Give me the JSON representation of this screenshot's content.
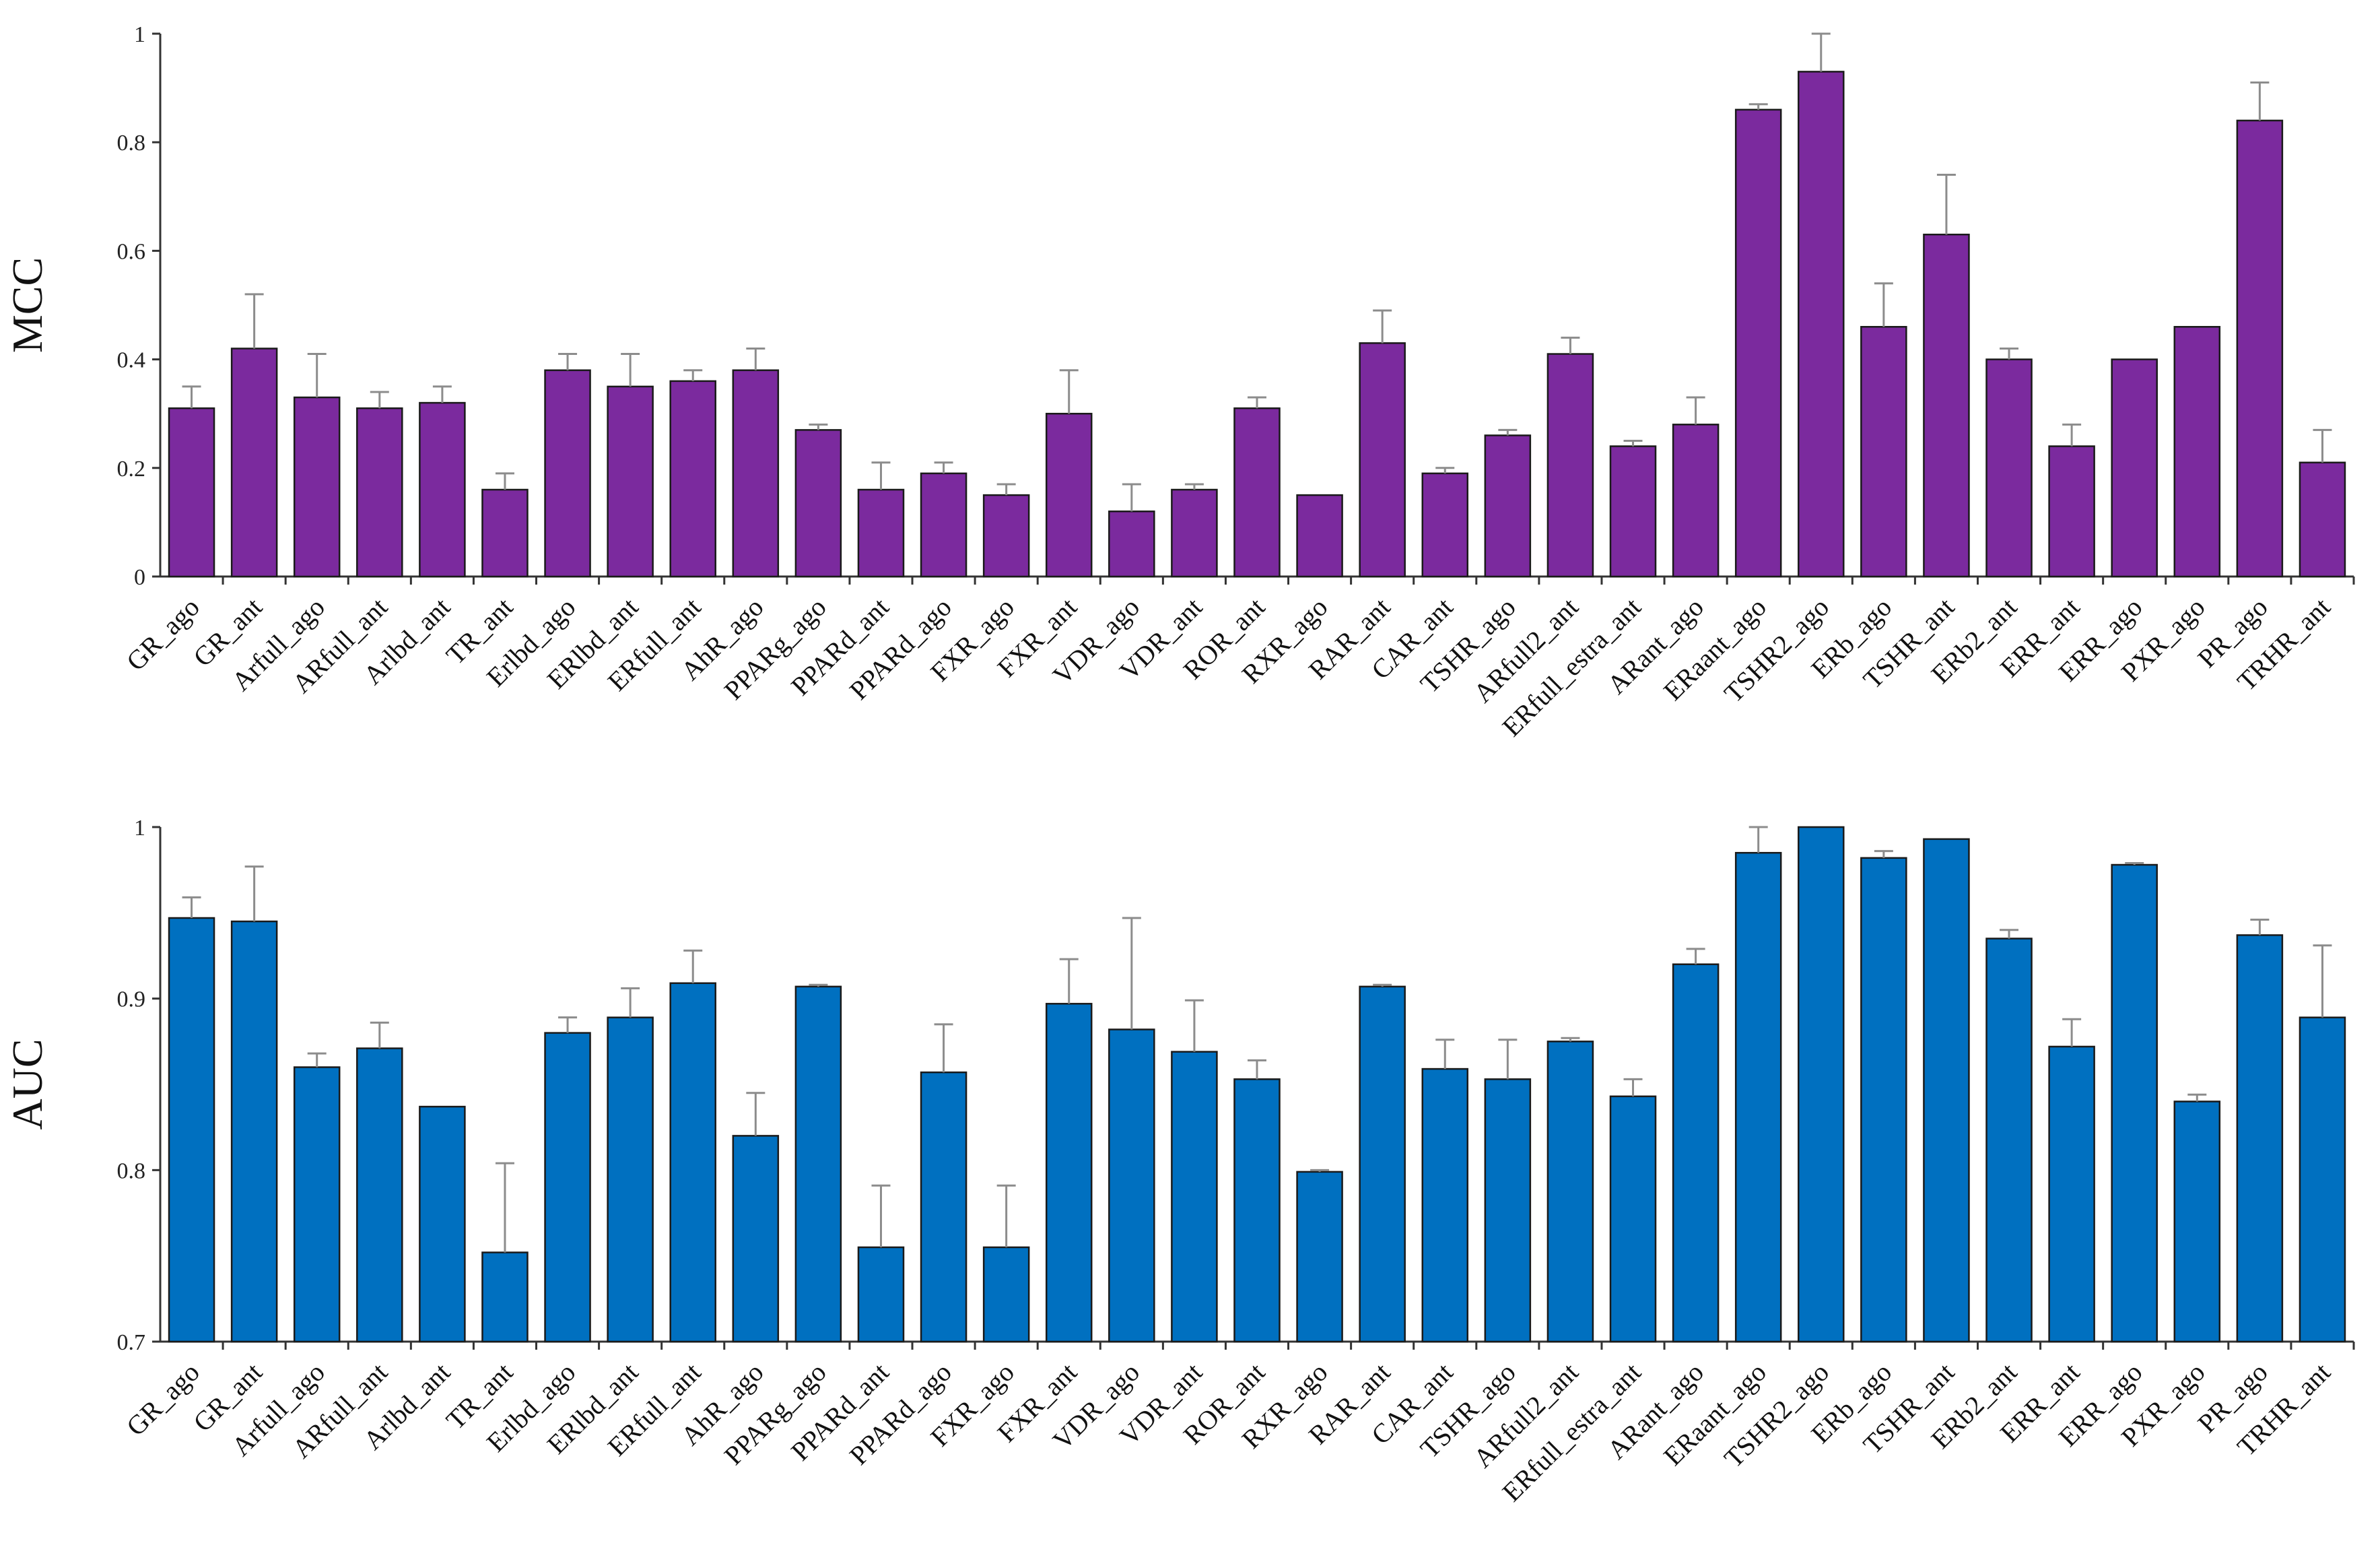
{
  "chart_data": [
    {
      "type": "bar",
      "title": "",
      "xlabel": "",
      "ylabel": "MCC",
      "ylim": [
        0,
        1
      ],
      "yticks": [
        "0",
        "0.2",
        "0.4",
        "0.6",
        "0.8",
        "1"
      ],
      "bar_color": "#7b2a9e",
      "categories": [
        "GR_ago",
        "GR_ant",
        "Arfull_ago",
        "ARfull_ant",
        "Arlbd_ant",
        "TR_ant",
        "Erlbd_ago",
        "ERlbd_ant",
        "ERfull_ant",
        "AhR_ago",
        "PPARg_ago",
        "PPARd_ant",
        "PPARd_ago",
        "FXR_ago",
        "FXR_ant",
        "VDR_ago",
        "VDR_ant",
        "ROR_ant",
        "RXR_ago",
        "RAR_ant",
        "CAR_ant",
        "TSHR_ago",
        "ARfull2_ant",
        "ERfull_estra_ant",
        "ARant_ago",
        "ERaant_ago",
        "TSHR2_ago",
        "ERb_ago",
        "TSHR_ant",
        "ERb2_ant",
        "ERR_ant",
        "ERR_ago",
        "PXR_ago",
        "PR_ago",
        "TRHR_ant"
      ],
      "values": [
        0.31,
        0.42,
        0.33,
        0.31,
        0.32,
        0.16,
        0.38,
        0.35,
        0.36,
        0.38,
        0.27,
        0.16,
        0.19,
        0.15,
        0.3,
        0.12,
        0.16,
        0.31,
        0.15,
        0.43,
        0.19,
        0.26,
        0.41,
        0.24,
        0.28,
        0.86,
        0.93,
        0.46,
        0.63,
        0.4,
        0.24,
        0.4,
        0.46,
        0.84,
        0.21
      ],
      "errors": [
        0.04,
        0.1,
        0.08,
        0.03,
        0.03,
        0.03,
        0.03,
        0.06,
        0.02,
        0.04,
        0.01,
        0.05,
        0.02,
        0.02,
        0.08,
        0.05,
        0.01,
        0.02,
        0.0,
        0.06,
        0.01,
        0.01,
        0.03,
        0.01,
        0.05,
        0.01,
        0.07,
        0.08,
        0.11,
        0.02,
        0.04,
        0.0,
        0.0,
        0.07,
        0.06
      ]
    },
    {
      "type": "bar",
      "title": "",
      "xlabel": "",
      "ylabel": "AUC",
      "ylim": [
        0.7,
        1
      ],
      "yticks": [
        "0.7",
        "0.8",
        "0.9",
        "1"
      ],
      "bar_color": "#0070c0",
      "categories": [
        "GR_ago",
        "GR_ant",
        "Arfull_ago",
        "ARfull_ant",
        "Arlbd_ant",
        "TR_ant",
        "Erlbd_ago",
        "ERlbd_ant",
        "ERfull_ant",
        "AhR_ago",
        "PPARg_ago",
        "PPARd_ant",
        "PPARd_ago",
        "FXR_ago",
        "FXR_ant",
        "VDR_ago",
        "VDR_ant",
        "ROR_ant",
        "RXR_ago",
        "RAR_ant",
        "CAR_ant",
        "TSHR_ago",
        "ARfull2_ant",
        "ERfull_estra_ant",
        "ARant_ago",
        "ERaant_ago",
        "TSHR2_ago",
        "ERb_ago",
        "TSHR_ant",
        "ERb2_ant",
        "ERR_ant",
        "ERR_ago",
        "PXR_ago",
        "PR_ago",
        "TRHR_ant"
      ],
      "values": [
        0.947,
        0.945,
        0.86,
        0.871,
        0.837,
        0.752,
        0.88,
        0.889,
        0.909,
        0.82,
        0.907,
        0.755,
        0.857,
        0.755,
        0.897,
        0.882,
        0.869,
        0.853,
        0.799,
        0.907,
        0.859,
        0.853,
        0.875,
        0.843,
        0.92,
        0.985,
        1.0,
        0.982,
        0.993,
        0.935,
        0.872,
        0.978,
        0.84,
        0.937,
        0.889
      ],
      "errors": [
        0.012,
        0.032,
        0.008,
        0.015,
        0.0,
        0.052,
        0.009,
        0.017,
        0.019,
        0.025,
        0.001,
        0.036,
        0.028,
        0.036,
        0.026,
        0.065,
        0.03,
        0.011,
        0.001,
        0.001,
        0.017,
        0.023,
        0.002,
        0.01,
        0.009,
        0.016,
        0.0,
        0.004,
        0.0,
        0.005,
        0.016,
        0.001,
        0.004,
        0.009,
        0.042
      ]
    }
  ]
}
